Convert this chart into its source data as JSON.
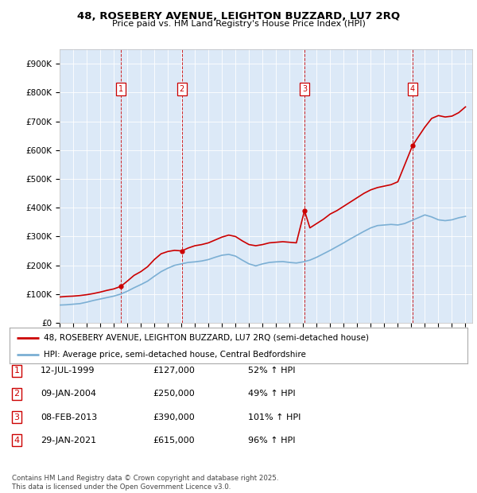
{
  "title": "48, ROSEBERY AVENUE, LEIGHTON BUZZARD, LU7 2RQ",
  "subtitle": "Price paid vs. HM Land Registry's House Price Index (HPI)",
  "ylabel_ticks": [
    "£0",
    "£100K",
    "£200K",
    "£300K",
    "£400K",
    "£500K",
    "£600K",
    "£700K",
    "£800K",
    "£900K"
  ],
  "ylim": [
    0,
    950000
  ],
  "yticks": [
    0,
    100000,
    200000,
    300000,
    400000,
    500000,
    600000,
    700000,
    800000,
    900000
  ],
  "x_start_year": 1995,
  "x_end_year": 2025,
  "bg_color": "#dce9f7",
  "fig_bg_color": "#ffffff",
  "red_line_color": "#cc0000",
  "blue_line_color": "#7bafd4",
  "dashed_line_color": "#cc0000",
  "sale_points": [
    {
      "date_num": 1999.53,
      "price": 127000,
      "label": "1"
    },
    {
      "date_num": 2004.03,
      "price": 250000,
      "label": "2"
    },
    {
      "date_num": 2013.1,
      "price": 390000,
      "label": "3"
    },
    {
      "date_num": 2021.08,
      "price": 615000,
      "label": "4"
    }
  ],
  "table_rows": [
    {
      "num": "1",
      "date": "12-JUL-1999",
      "price": "£127,000",
      "change": "52% ↑ HPI"
    },
    {
      "num": "2",
      "date": "09-JAN-2004",
      "price": "£250,000",
      "change": "49% ↑ HPI"
    },
    {
      "num": "3",
      "date": "08-FEB-2013",
      "price": "£390,000",
      "change": "101% ↑ HPI"
    },
    {
      "num": "4",
      "date": "29-JAN-2021",
      "price": "£615,000",
      "change": "96% ↑ HPI"
    }
  ],
  "legend_entries": [
    "48, ROSEBERY AVENUE, LEIGHTON BUZZARD, LU7 2RQ (semi-detached house)",
    "HPI: Average price, semi-detached house, Central Bedfordshire"
  ],
  "footer": "Contains HM Land Registry data © Crown copyright and database right 2025.\nThis data is licensed under the Open Government Licence v3.0.",
  "red_line_data_x": [
    1995.0,
    1995.5,
    1996.0,
    1996.5,
    1997.0,
    1997.5,
    1998.0,
    1998.5,
    1999.0,
    1999.53,
    2000.0,
    2000.5,
    2001.0,
    2001.5,
    2002.0,
    2002.5,
    2003.0,
    2003.5,
    2004.03,
    2004.5,
    2005.0,
    2005.5,
    2006.0,
    2006.5,
    2007.0,
    2007.5,
    2008.0,
    2008.5,
    2009.0,
    2009.5,
    2010.0,
    2010.5,
    2011.0,
    2011.5,
    2012.0,
    2012.5,
    2013.1,
    2013.5,
    2014.0,
    2014.5,
    2015.0,
    2015.5,
    2016.0,
    2016.5,
    2017.0,
    2017.5,
    2018.0,
    2018.5,
    2019.0,
    2019.5,
    2020.0,
    2021.08,
    2021.5,
    2022.0,
    2022.5,
    2023.0,
    2023.5,
    2024.0,
    2024.5,
    2025.0
  ],
  "red_line_data_y": [
    90000,
    92000,
    93000,
    95000,
    98000,
    102000,
    107000,
    113000,
    118000,
    127000,
    145000,
    165000,
    178000,
    195000,
    220000,
    240000,
    248000,
    252000,
    250000,
    260000,
    268000,
    272000,
    278000,
    288000,
    298000,
    305000,
    300000,
    285000,
    272000,
    268000,
    272000,
    278000,
    280000,
    282000,
    280000,
    278000,
    390000,
    330000,
    345000,
    360000,
    378000,
    390000,
    405000,
    420000,
    435000,
    450000,
    462000,
    470000,
    475000,
    480000,
    490000,
    615000,
    645000,
    680000,
    710000,
    720000,
    715000,
    718000,
    730000,
    750000
  ],
  "blue_line_data_x": [
    1995.0,
    1995.5,
    1996.0,
    1996.5,
    1997.0,
    1997.5,
    1998.0,
    1998.5,
    1999.0,
    1999.5,
    2000.0,
    2000.5,
    2001.0,
    2001.5,
    2002.0,
    2002.5,
    2003.0,
    2003.5,
    2004.0,
    2004.5,
    2005.0,
    2005.5,
    2006.0,
    2006.5,
    2007.0,
    2007.5,
    2008.0,
    2008.5,
    2009.0,
    2009.5,
    2010.0,
    2010.5,
    2011.0,
    2011.5,
    2012.0,
    2012.5,
    2013.0,
    2013.5,
    2014.0,
    2014.5,
    2015.0,
    2015.5,
    2016.0,
    2016.5,
    2017.0,
    2017.5,
    2018.0,
    2018.5,
    2019.0,
    2019.5,
    2020.0,
    2020.5,
    2021.0,
    2021.5,
    2022.0,
    2022.5,
    2023.0,
    2023.5,
    2024.0,
    2024.5,
    2025.0
  ],
  "blue_line_data_y": [
    62000,
    63000,
    65000,
    67000,
    72000,
    78000,
    83000,
    88000,
    93000,
    100000,
    110000,
    122000,
    133000,
    145000,
    162000,
    178000,
    190000,
    200000,
    205000,
    210000,
    212000,
    215000,
    220000,
    228000,
    235000,
    238000,
    232000,
    218000,
    205000,
    198000,
    205000,
    210000,
    212000,
    213000,
    210000,
    208000,
    212000,
    218000,
    228000,
    240000,
    252000,
    265000,
    278000,
    292000,
    305000,
    318000,
    330000,
    338000,
    340000,
    342000,
    340000,
    345000,
    355000,
    365000,
    375000,
    368000,
    358000,
    355000,
    358000,
    365000,
    370000
  ]
}
